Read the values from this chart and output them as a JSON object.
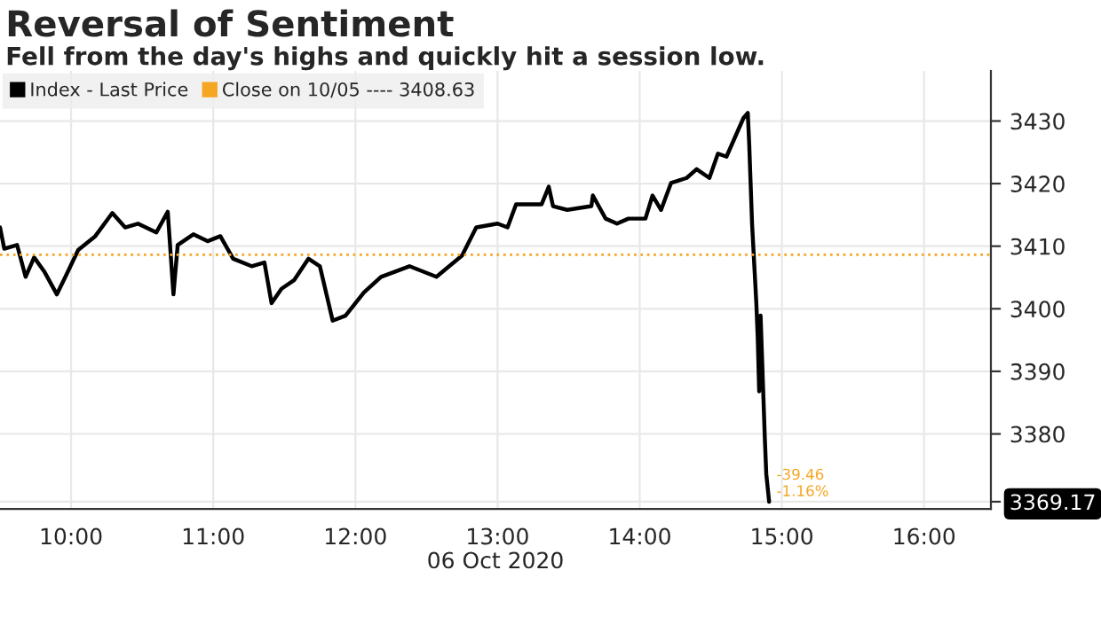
{
  "chart_data": {
    "type": "line",
    "title": "Reversal of Sentiment",
    "subtitle": "Fell from the day's highs and quickly hit a session low.",
    "xlabel": "06 Oct 2020",
    "series": [
      {
        "name": "Index - Last Price",
        "color": "#000000",
        "x": [
          9.5,
          9.53,
          9.62,
          9.68,
          9.74,
          9.81,
          9.9,
          9.96,
          10.05,
          10.17,
          10.29,
          10.38,
          10.47,
          10.6,
          10.68,
          10.72,
          10.75,
          10.86,
          10.96,
          11.05,
          11.14,
          11.27,
          11.36,
          11.41,
          11.48,
          11.57,
          11.67,
          11.75,
          11.84,
          11.93,
          12.06,
          12.18,
          12.38,
          12.57,
          12.75,
          12.85,
          13.0,
          13.07,
          13.13,
          13.31,
          13.36,
          13.39,
          13.49,
          13.66,
          13.67,
          13.76,
          13.84,
          13.92,
          14.04,
          14.09,
          14.15,
          14.22,
          14.33,
          14.4,
          14.49,
          14.55,
          14.61,
          14.73,
          14.76,
          14.77,
          14.79,
          14.82,
          14.83,
          14.84,
          14.85,
          14.88,
          14.89,
          14.91
        ],
        "values": [
          3413.0,
          3409.6,
          3410.2,
          3405.1,
          3408.2,
          3406.0,
          3402.3,
          3405.1,
          3409.4,
          3411.6,
          3415.3,
          3413.0,
          3413.6,
          3412.2,
          3415.5,
          3402.3,
          3410.2,
          3411.9,
          3410.8,
          3411.6,
          3408.0,
          3406.8,
          3407.4,
          3400.9,
          3403.2,
          3404.6,
          3408.0,
          3406.8,
          3398.1,
          3398.9,
          3402.6,
          3405.1,
          3406.8,
          3405.1,
          3408.5,
          3413.0,
          3413.6,
          3413.0,
          3416.7,
          3416.7,
          3419.5,
          3416.4,
          3415.8,
          3416.4,
          3418.1,
          3414.4,
          3413.6,
          3414.4,
          3414.4,
          3418.1,
          3415.8,
          3420.1,
          3420.9,
          3422.3,
          3420.9,
          3424.8,
          3424.3,
          3430.5,
          3431.3,
          3426.3,
          3413.6,
          3400.9,
          3395.3,
          3386.8,
          3398.9,
          3379.2,
          3373.6,
          3369.17
        ]
      }
    ],
    "ref_lines": [
      {
        "axis": "y",
        "value": 3408.63,
        "label": "Close on 10/05 ---- 3408.63",
        "color": "#f5a623",
        "line_style": "dotted"
      }
    ],
    "annotations": [
      {
        "text": "-39.46\n-1.16%",
        "x": 14.91,
        "y": 3369.17
      }
    ],
    "xlim": [
      9.5,
      16.47
    ],
    "ylim": [
      3368,
      3438
    ],
    "xticks": [
      {
        "value": 10,
        "label": "10:00"
      },
      {
        "value": 11,
        "label": "11:00"
      },
      {
        "value": 12,
        "label": "12:00"
      },
      {
        "value": 13,
        "label": "13:00"
      },
      {
        "value": 14,
        "label": "14:00"
      },
      {
        "value": 15,
        "label": "15:00"
      },
      {
        "value": 16,
        "label": "16:00"
      }
    ],
    "yticks": [
      3369.17,
      3380,
      3390,
      3400,
      3410,
      3420,
      3430
    ],
    "grid": true,
    "legend": "top left"
  }
}
